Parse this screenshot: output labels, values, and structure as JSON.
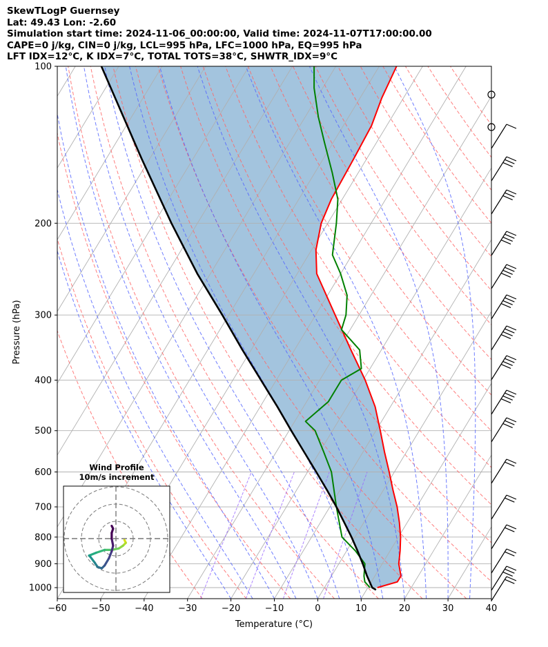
{
  "header": {
    "line1": "SkewTLogP Guernsey",
    "line2": "Lat: 49.43   Lon: -2.60",
    "line3": "Simulation start time: 2024-11-06_00:00:00, Valid time: 2024-11-07T17:00:00.00",
    "line4": "CAPE=0 j/kg, CIN=0 j/kg, LCL=995 hPa, LFC=1000 hPa, EQ=995 hPa",
    "line5": "LFT IDX=12°C, K IDX=7°C, TOTAL TOTS=38°C, SHWTR_IDX=9°C"
  },
  "hodograph": {
    "title": "Wind Profile",
    "subtitle": "10m/s increment",
    "points": [
      [
        6,
        -1
      ],
      [
        7,
        -3
      ],
      [
        5,
        -5
      ],
      [
        2,
        -7
      ],
      [
        -3,
        -8
      ],
      [
        -8,
        -8
      ],
      [
        -14,
        -10
      ],
      [
        -19,
        -12
      ],
      [
        -18,
        -13
      ],
      [
        -15,
        -17
      ],
      [
        -13,
        -20
      ],
      [
        -10,
        -21
      ],
      [
        -8,
        -19
      ],
      [
        -5,
        -14
      ],
      [
        -3,
        -9
      ],
      [
        -2,
        -5
      ],
      [
        -3,
        0
      ],
      [
        -3,
        4
      ],
      [
        -2,
        7
      ],
      [
        -3,
        9
      ]
    ]
  },
  "chart_data": {
    "type": "line",
    "xlabel": "Temperature (°C)",
    "ylabel": "Pressure (hPa)",
    "xlim": [
      -60,
      40
    ],
    "ylim": [
      1050,
      100
    ],
    "y_scale": "log",
    "skew": true,
    "x_ticks": [
      -60,
      -50,
      -40,
      -30,
      -20,
      -10,
      0,
      10,
      20,
      30,
      40
    ],
    "x_tick_labels": [
      "−60",
      "−50",
      "−40",
      "−30",
      "−20",
      "−10",
      "0",
      "10",
      "20",
      "30",
      "40"
    ],
    "y_ticks": [
      1000,
      900,
      800,
      700,
      600,
      500,
      400,
      300,
      200,
      100
    ],
    "grid": true,
    "series": [
      {
        "name": "Temperature",
        "color": "#ff0000",
        "points": [
          [
            1000,
            12.2
          ],
          [
            975,
            16.0
          ],
          [
            950,
            16.0
          ],
          [
            900,
            13.8
          ],
          [
            850,
            12.3
          ],
          [
            800,
            10.5
          ],
          [
            750,
            8.2
          ],
          [
            700,
            5.5
          ],
          [
            650,
            2.2
          ],
          [
            600,
            -1.2
          ],
          [
            550,
            -5.0
          ],
          [
            500,
            -9.0
          ],
          [
            450,
            -13.5
          ],
          [
            400,
            -19.5
          ],
          [
            350,
            -27.0
          ],
          [
            300,
            -35.5
          ],
          [
            250,
            -45.5
          ],
          [
            225,
            -49.0
          ],
          [
            200,
            -51.5
          ],
          [
            180,
            -52.5
          ],
          [
            150,
            -53.0
          ],
          [
            130,
            -53.5
          ],
          [
            115,
            -55.0
          ],
          [
            100,
            -56.0
          ]
        ]
      },
      {
        "name": "Dewpoint",
        "color": "#008000",
        "points": [
          [
            1000,
            10.5
          ],
          [
            975,
            8.5
          ],
          [
            950,
            7.5
          ],
          [
            900,
            6.0
          ],
          [
            850,
            2.0
          ],
          [
            800,
            -3.0
          ],
          [
            700,
            -8.5
          ],
          [
            600,
            -14.5
          ],
          [
            550,
            -19.0
          ],
          [
            500,
            -24.0
          ],
          [
            480,
            -27.5
          ],
          [
            440,
            -25.0
          ],
          [
            420,
            -25.0
          ],
          [
            400,
            -25.0
          ],
          [
            380,
            -22.0
          ],
          [
            350,
            -25.0
          ],
          [
            320,
            -32.0
          ],
          [
            300,
            -33.0
          ],
          [
            275,
            -35.5
          ],
          [
            250,
            -40.0
          ],
          [
            230,
            -44.5
          ],
          [
            200,
            -48.0
          ],
          [
            180,
            -51.0
          ],
          [
            160,
            -56.0
          ],
          [
            140,
            -62.0
          ],
          [
            125,
            -67.0
          ],
          [
            110,
            -72.0
          ],
          [
            100,
            -75.0
          ]
        ]
      },
      {
        "name": "Parcel",
        "color": "#000000",
        "points": [
          [
            1010,
            12.2
          ],
          [
            1000,
            11.0
          ],
          [
            950,
            8.2
          ],
          [
            900,
            5.5
          ],
          [
            850,
            2.5
          ],
          [
            800,
            -0.8
          ],
          [
            750,
            -4.5
          ],
          [
            700,
            -8.5
          ],
          [
            650,
            -13.0
          ],
          [
            600,
            -18.0
          ],
          [
            550,
            -23.5
          ],
          [
            500,
            -29.5
          ],
          [
            450,
            -36.0
          ],
          [
            400,
            -43.5
          ],
          [
            350,
            -52.0
          ],
          [
            300,
            -61.5
          ],
          [
            250,
            -73.0
          ],
          [
            200,
            -86.0
          ],
          [
            150,
            -102.0
          ],
          [
            100,
            -124.0
          ]
        ]
      }
    ]
  },
  "colors": {
    "temperature": "#ff0000",
    "dewpoint": "#008000",
    "parcel": "#000000",
    "shading": "#a3c4de",
    "dry_adiabat": "#ff6666",
    "moist_adiabat": "#5566ff",
    "mixing_ratio": "#9966ff",
    "isotherm": "#b0b0b0"
  }
}
